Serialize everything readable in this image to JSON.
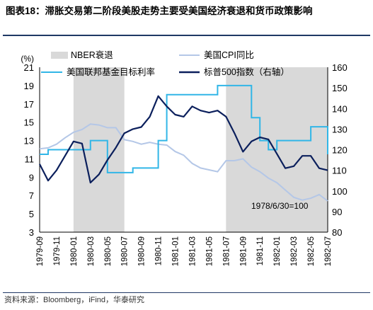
{
  "header": {
    "title_prefix": "图表18：",
    "title_text": "滞胀交易第二阶段美股走势主要受美国经济衰退和货币政策影响"
  },
  "source_text": "资料来源：Bloomberg，iFind，华泰研究",
  "chart_data": {
    "type": "line",
    "left_axis_unit": "(%)",
    "left_ylim": [
      3,
      21
    ],
    "left_ticks": [
      3,
      5,
      7,
      9,
      11,
      13,
      15,
      17,
      19,
      21
    ],
    "right_ylim": [
      80,
      160
    ],
    "right_ticks": [
      80,
      90,
      100,
      110,
      120,
      130,
      140,
      150,
      160
    ],
    "x_start": "1979-09",
    "x_end": "1982-07",
    "x_tick_labels": [
      "1979-09",
      "1979-11",
      "1980-01",
      "1980-03",
      "1980-05",
      "1980-07",
      "1980-09",
      "1980-11",
      "1981-01",
      "1981-03",
      "1981-05",
      "1981-07",
      "1981-09",
      "1981-11",
      "1982-01",
      "1982-03",
      "1982-05",
      "1982-07"
    ],
    "annotation": "1978/6/30=100",
    "legend": {
      "recession": "NBER衰退",
      "cpi": "美国CPI同比",
      "fed": "美国联邦基金目标利率",
      "sp500": "标普500指数（右轴）"
    },
    "colors": {
      "recession": "#d9d9d9",
      "cpi": "#b4c7e7",
      "fed": "#31b6e7",
      "sp500": "#0b1f5c"
    },
    "recessions": [
      {
        "start": "1980-01",
        "end": "1980-07"
      },
      {
        "start": "1981-07",
        "end": "1982-07"
      }
    ],
    "series": [
      {
        "name": "美国CPI同比",
        "axis": "left",
        "x": [
          "1979-09",
          "1979-10",
          "1979-11",
          "1979-12",
          "1980-01",
          "1980-02",
          "1980-03",
          "1980-04",
          "1980-05",
          "1980-06",
          "1980-07",
          "1980-08",
          "1980-09",
          "1980-10",
          "1980-11",
          "1980-12",
          "1981-01",
          "1981-02",
          "1981-03",
          "1981-04",
          "1981-05",
          "1981-06",
          "1981-07",
          "1981-08",
          "1981-09",
          "1981-10",
          "1981-11",
          "1981-12",
          "1982-01",
          "1982-02",
          "1982-03",
          "1982-04",
          "1982-05",
          "1982-06",
          "1982-07"
        ],
        "values": [
          12.1,
          12.2,
          12.6,
          13.3,
          13.9,
          14.2,
          14.8,
          14.7,
          14.4,
          14.4,
          13.1,
          12.9,
          12.6,
          12.8,
          12.6,
          12.5,
          11.8,
          11.4,
          10.5,
          10.0,
          9.8,
          9.6,
          10.8,
          10.8,
          11.0,
          10.1,
          9.6,
          8.9,
          8.4,
          7.6,
          6.8,
          6.5,
          6.7,
          7.1,
          6.4
        ]
      },
      {
        "name": "美国联邦基金目标利率",
        "axis": "left",
        "x": [
          "1979-09",
          "1979-10",
          "1980-02",
          "1980-03",
          "1980-04",
          "1980-05",
          "1980-07",
          "1980-08",
          "1980-09",
          "1980-10",
          "1980-11",
          "1980-12",
          "1981-01",
          "1981-05",
          "1981-06",
          "1981-10",
          "1981-11",
          "1981-12",
          "1982-01",
          "1982-05",
          "1982-07"
        ],
        "values": [
          11.5,
          12.0,
          12.0,
          13.0,
          13.0,
          9.5,
          9.5,
          10.0,
          10.0,
          10.0,
          13.0,
          18.0,
          18.0,
          18.0,
          19.0,
          15.5,
          13.0,
          12.0,
          13.0,
          14.5,
          11.5
        ]
      },
      {
        "name": "标普500指数（右轴）",
        "axis": "right",
        "x": [
          "1979-09",
          "1979-10",
          "1979-11",
          "1979-12",
          "1980-01",
          "1980-02",
          "1980-03",
          "1980-04",
          "1980-05",
          "1980-06",
          "1980-07",
          "1980-08",
          "1980-09",
          "1980-10",
          "1980-11",
          "1980-12",
          "1981-01",
          "1981-02",
          "1981-03",
          "1981-04",
          "1981-05",
          "1981-06",
          "1981-07",
          "1981-08",
          "1981-09",
          "1981-10",
          "1981-11",
          "1981-12",
          "1982-01",
          "1982-02",
          "1982-03",
          "1982-04",
          "1982-05",
          "1982-06",
          "1982-07"
        ],
        "values": [
          113,
          105,
          110,
          117,
          124,
          123,
          104,
          108,
          115,
          121,
          128,
          130,
          131,
          136,
          146,
          141,
          137,
          136,
          141,
          139,
          138,
          139,
          136,
          128,
          119,
          124,
          126,
          125,
          118,
          111,
          112,
          117,
          117,
          111,
          110
        ]
      }
    ]
  }
}
